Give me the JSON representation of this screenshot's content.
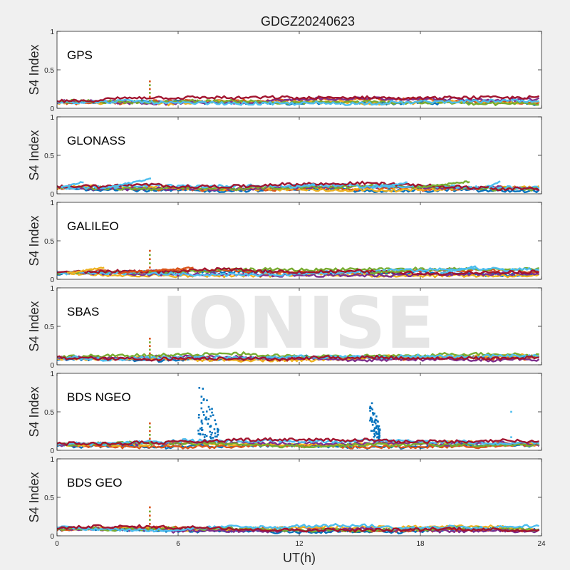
{
  "figure_title": "GDGZ20240623",
  "watermark": "IONISE",
  "xlabel": "UT(h)",
  "chart_data": [
    {
      "type": "scatter",
      "label": "GPS",
      "ylabel": "S4 Index",
      "xlim": [
        0,
        24
      ],
      "ylim": [
        0,
        1
      ],
      "xticks": [
        0,
        6,
        12,
        18,
        24
      ],
      "yticks": [
        0,
        0.5,
        1
      ],
      "baseline": 0.08,
      "spikes": [
        {
          "x": 4.6,
          "ymax": 0.35
        }
      ]
    },
    {
      "type": "scatter",
      "label": "GLONASS",
      "ylabel": "S4 Index",
      "xlim": [
        0,
        24
      ],
      "ylim": [
        0,
        1
      ],
      "xticks": [
        0,
        6,
        12,
        18,
        24
      ],
      "yticks": [
        0,
        0.5,
        1
      ],
      "baseline": 0.08,
      "spikes": []
    },
    {
      "type": "scatter",
      "label": "GALILEO",
      "ylabel": "S4 Index",
      "xlim": [
        0,
        24
      ],
      "ylim": [
        0,
        1
      ],
      "xticks": [
        0,
        6,
        12,
        18,
        24
      ],
      "yticks": [
        0,
        0.5,
        1
      ],
      "baseline": 0.08,
      "spikes": [
        {
          "x": 4.6,
          "ymax": 0.37
        }
      ]
    },
    {
      "type": "scatter",
      "label": "SBAS",
      "ylabel": "S4 Index",
      "xlim": [
        0,
        24
      ],
      "ylim": [
        0,
        1
      ],
      "xticks": [
        0,
        6,
        12,
        18,
        24
      ],
      "yticks": [
        0,
        0.5,
        1
      ],
      "baseline": 0.09,
      "spikes": [
        {
          "x": 4.6,
          "ymax": 0.34
        }
      ]
    },
    {
      "type": "scatter",
      "label": "BDS NGEO",
      "ylabel": "S4 Index",
      "xlim": [
        0,
        24
      ],
      "ylim": [
        0,
        1
      ],
      "xticks": [
        0,
        6,
        12,
        18,
        24
      ],
      "yticks": [
        0,
        0.5,
        1
      ],
      "baseline": 0.08,
      "spikes": [
        {
          "x": 4.6,
          "ymax": 0.35
        }
      ],
      "scintillation_bursts": [
        {
          "x_start": 7.0,
          "x_end": 8.0,
          "ymax": 0.95
        },
        {
          "x_start": 15.5,
          "x_end": 16.0,
          "ymax": 0.72
        }
      ],
      "isolated_points": [
        {
          "x": 22.5,
          "y": 0.5
        },
        {
          "x": 22.5,
          "y": 0.17
        }
      ]
    },
    {
      "type": "scatter",
      "label": "BDS GEO",
      "ylabel": "S4 Index",
      "xlim": [
        0,
        24
      ],
      "ylim": [
        0,
        1
      ],
      "xticks": [
        0,
        6,
        12,
        18,
        24
      ],
      "yticks": [
        0,
        0.5,
        1
      ],
      "baseline": 0.09,
      "spikes": [
        {
          "x": 4.6,
          "ymax": 0.37
        }
      ]
    }
  ],
  "colors": [
    "#0072bd",
    "#d95319",
    "#edb120",
    "#7e2f8e",
    "#77ac30",
    "#4dbeee",
    "#a2142f"
  ]
}
